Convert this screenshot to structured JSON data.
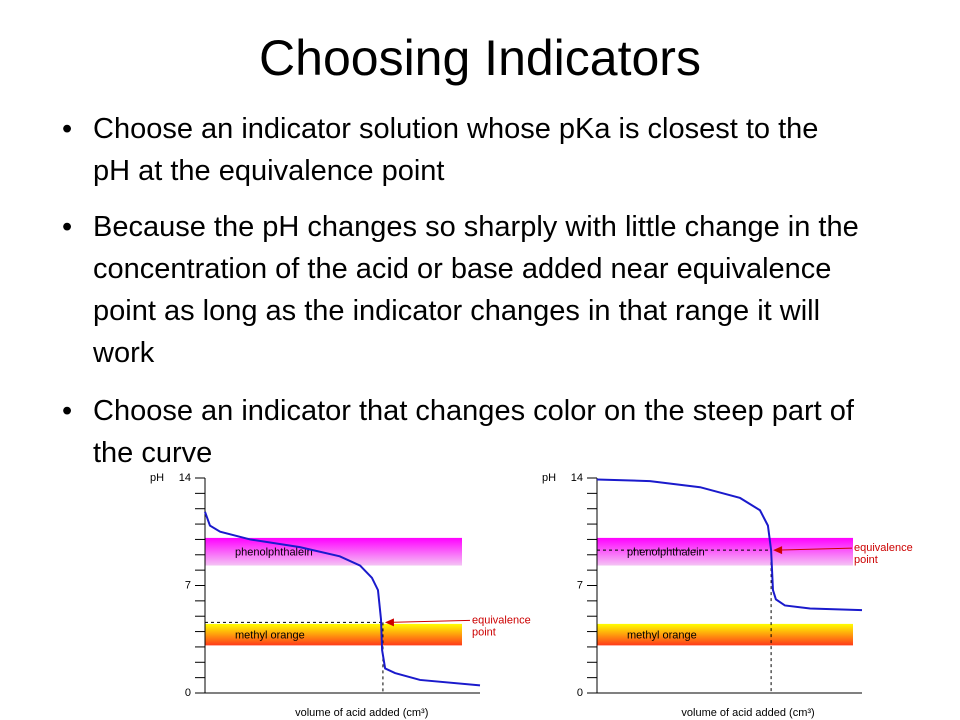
{
  "title": "Choosing Indicators",
  "bullets": [
    "Choose an indicator solution whose pKa is closest to the pH at the equivalence point",
    "Because the pH changes so sharply with little change in the concentration of the acid or base added near equivalence point as long as the indicator changes in that range it will work",
    "Choose an indicator that changes color on the steep part of the curve"
  ],
  "chart_data": [
    {
      "type": "line",
      "ylabel": "pH",
      "xlabel": "volume of acid added (cm³)",
      "xlim": [
        0,
        100
      ],
      "ylim": [
        0,
        14
      ],
      "yticks": [
        0,
        7,
        14
      ],
      "minor_yticks": [
        1,
        2,
        3,
        4,
        5,
        6,
        8,
        9,
        10,
        11,
        12,
        13
      ],
      "x": [
        0,
        1.8,
        5.5,
        16.4,
        34.5,
        49,
        56.4,
        60.7,
        62.9,
        64,
        64.4,
        65.5,
        69.1,
        78.2,
        100
      ],
      "series": [
        {
          "color": "#1a1acc",
          "values": [
            11.8,
            10.9,
            10.5,
            10.0,
            9.5,
            8.9,
            8.3,
            7.5,
            6.7,
            4.8,
            2.8,
            1.6,
            1.3,
            0.85,
            0.5
          ]
        }
      ],
      "bands": [
        {
          "name": "phenolphthalein",
          "range": [
            8.3,
            10.1
          ],
          "colors": [
            "#ff00ff",
            "#f4c4f4"
          ]
        },
        {
          "name": "methyl orange",
          "range": [
            3.1,
            4.5
          ],
          "colors": [
            "#ffff00",
            "#ff3a1a"
          ]
        }
      ],
      "equivalence": {
        "label": [
          "equivalence",
          "point"
        ],
        "x": 64.7,
        "y": 4.6,
        "color": "#cc0000"
      }
    },
    {
      "type": "line",
      "ylabel": "pH",
      "xlabel": "volume of acid added (cm³)",
      "xlim": [
        0,
        100
      ],
      "ylim": [
        0,
        14
      ],
      "yticks": [
        0,
        7,
        14
      ],
      "minor_yticks": [
        1,
        2,
        3,
        4,
        5,
        6,
        8,
        9,
        10,
        11,
        12,
        13
      ],
      "x": [
        0,
        20,
        38.9,
        54,
        61.5,
        64.5,
        65.7,
        66.4,
        67.5,
        70.9,
        80.4,
        100
      ],
      "series": [
        {
          "color": "#1a1acc",
          "values": [
            13.9,
            13.8,
            13.4,
            12.7,
            11.9,
            10.9,
            9.3,
            6.7,
            6.1,
            5.7,
            5.5,
            5.4
          ]
        }
      ],
      "bands": [
        {
          "name": "phenolphthalein",
          "range": [
            8.3,
            10.1
          ],
          "colors": [
            "#ff00ff",
            "#f4c4f4"
          ]
        },
        {
          "name": "methyl orange",
          "range": [
            3.1,
            4.5
          ],
          "colors": [
            "#ffff00",
            "#ff3a1a"
          ]
        }
      ],
      "equivalence": {
        "label": [
          "equivalence",
          "point"
        ],
        "x": 65.7,
        "y": 9.3,
        "color": "#cc0000"
      }
    }
  ]
}
